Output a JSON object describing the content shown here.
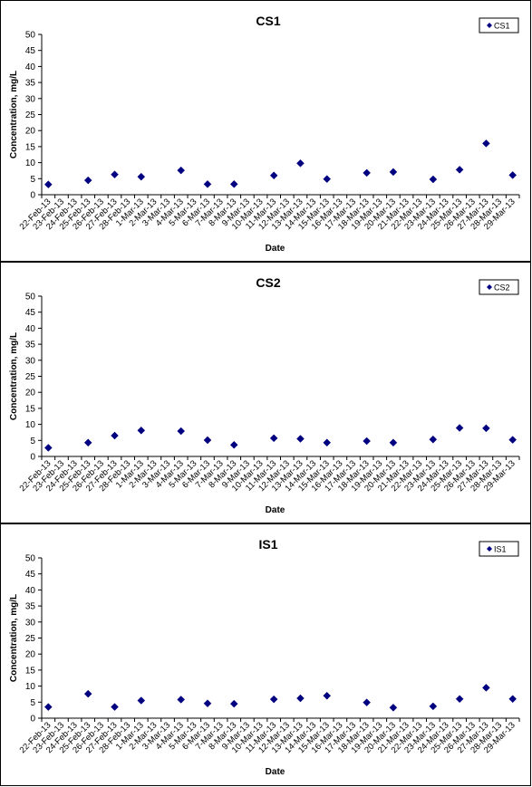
{
  "chart_data": [
    {
      "type": "scatter",
      "title": "CS1",
      "xlabel": "Date",
      "ylabel": "Concentration, mg/L",
      "ylim": [
        0,
        50
      ],
      "yticks": [
        0,
        5,
        10,
        15,
        20,
        25,
        30,
        35,
        40,
        45,
        50
      ],
      "grid": false,
      "legend_position": "top-right",
      "marker_color": "#000080",
      "categories": [
        "22-Feb-13",
        "23-Feb-13",
        "24-Feb-13",
        "25-Feb-13",
        "26-Feb-13",
        "27-Feb-13",
        "28-Feb-13",
        "1-Mar-13",
        "2-Mar-13",
        "3-Mar-13",
        "4-Mar-13",
        "5-Mar-13",
        "6-Mar-13",
        "7-Mar-13",
        "8-Mar-13",
        "9-Mar-13",
        "10-Mar-13",
        "11-Mar-13",
        "12-Mar-13",
        "13-Mar-13",
        "14-Mar-13",
        "15-Mar-13",
        "16-Mar-13",
        "17-Mar-13",
        "18-Mar-13",
        "19-Mar-13",
        "20-Mar-13",
        "21-Mar-13",
        "22-Mar-13",
        "23-Mar-13",
        "24-Mar-13",
        "25-Mar-13",
        "26-Mar-13",
        "27-Mar-13",
        "28-Mar-13",
        "29-Mar-13"
      ],
      "series": [
        {
          "name": "CS1",
          "points": [
            {
              "x": "22-Feb-13",
              "y": 3.2
            },
            {
              "x": "25-Feb-13",
              "y": 4.5
            },
            {
              "x": "27-Feb-13",
              "y": 6.3
            },
            {
              "x": "1-Mar-13",
              "y": 5.6
            },
            {
              "x": "4-Mar-13",
              "y": 7.6
            },
            {
              "x": "6-Mar-13",
              "y": 3.3
            },
            {
              "x": "8-Mar-13",
              "y": 3.3
            },
            {
              "x": "11-Mar-13",
              "y": 6.0
            },
            {
              "x": "13-Mar-13",
              "y": 9.8
            },
            {
              "x": "15-Mar-13",
              "y": 4.9
            },
            {
              "x": "18-Mar-13",
              "y": 6.8
            },
            {
              "x": "20-Mar-13",
              "y": 7.1
            },
            {
              "x": "23-Mar-13",
              "y": 4.8
            },
            {
              "x": "25-Mar-13",
              "y": 7.8
            },
            {
              "x": "27-Mar-13",
              "y": 16.0
            },
            {
              "x": "29-Mar-13",
              "y": 6.1
            }
          ]
        }
      ]
    },
    {
      "type": "scatter",
      "title": "CS2",
      "xlabel": "Date",
      "ylabel": "Concentration, mg/L",
      "ylim": [
        0,
        50
      ],
      "yticks": [
        0,
        5,
        10,
        15,
        20,
        25,
        30,
        35,
        40,
        45,
        50
      ],
      "grid": false,
      "legend_position": "top-right",
      "marker_color": "#000080",
      "categories": [
        "22-Feb-13",
        "23-Feb-13",
        "24-Feb-13",
        "25-Feb-13",
        "26-Feb-13",
        "27-Feb-13",
        "28-Feb-13",
        "1-Mar-13",
        "2-Mar-13",
        "3-Mar-13",
        "4-Mar-13",
        "5-Mar-13",
        "6-Mar-13",
        "7-Mar-13",
        "8-Mar-13",
        "9-Mar-13",
        "10-Mar-13",
        "11-Mar-13",
        "12-Mar-13",
        "13-Mar-13",
        "14-Mar-13",
        "15-Mar-13",
        "16-Mar-13",
        "17-Mar-13",
        "18-Mar-13",
        "19-Mar-13",
        "20-Mar-13",
        "21-Mar-13",
        "22-Mar-13",
        "23-Mar-13",
        "24-Mar-13",
        "25-Mar-13",
        "26-Mar-13",
        "27-Mar-13",
        "28-Mar-13",
        "29-Mar-13"
      ],
      "series": [
        {
          "name": "CS2",
          "points": [
            {
              "x": "22-Feb-13",
              "y": 2.7
            },
            {
              "x": "25-Feb-13",
              "y": 4.3
            },
            {
              "x": "27-Feb-13",
              "y": 6.5
            },
            {
              "x": "1-Mar-13",
              "y": 8.1
            },
            {
              "x": "4-Mar-13",
              "y": 7.9
            },
            {
              "x": "6-Mar-13",
              "y": 5.1
            },
            {
              "x": "8-Mar-13",
              "y": 3.6
            },
            {
              "x": "11-Mar-13",
              "y": 5.7
            },
            {
              "x": "13-Mar-13",
              "y": 5.5
            },
            {
              "x": "15-Mar-13",
              "y": 4.3
            },
            {
              "x": "18-Mar-13",
              "y": 4.8
            },
            {
              "x": "20-Mar-13",
              "y": 4.3
            },
            {
              "x": "23-Mar-13",
              "y": 5.3
            },
            {
              "x": "25-Mar-13",
              "y": 8.9
            },
            {
              "x": "27-Mar-13",
              "y": 8.8
            },
            {
              "x": "29-Mar-13",
              "y": 5.2
            }
          ]
        }
      ]
    },
    {
      "type": "scatter",
      "title": "IS1",
      "xlabel": "Date",
      "ylabel": "Concentration, mg/L",
      "ylim": [
        0,
        50
      ],
      "yticks": [
        0,
        5,
        10,
        15,
        20,
        25,
        30,
        35,
        40,
        45,
        50
      ],
      "grid": false,
      "legend_position": "top-right",
      "marker_color": "#000080",
      "categories": [
        "22-Feb-13",
        "23-Feb-13",
        "24-Feb-13",
        "25-Feb-13",
        "26-Feb-13",
        "27-Feb-13",
        "28-Feb-13",
        "1-Mar-13",
        "2-Mar-13",
        "3-Mar-13",
        "4-Mar-13",
        "5-Mar-13",
        "6-Mar-13",
        "7-Mar-13",
        "8-Mar-13",
        "9-Mar-13",
        "10-Mar-13",
        "11-Mar-13",
        "12-Mar-13",
        "13-Mar-13",
        "14-Mar-13",
        "15-Mar-13",
        "16-Mar-13",
        "17-Mar-13",
        "18-Mar-13",
        "19-Mar-13",
        "20-Mar-13",
        "21-Mar-13",
        "22-Mar-13",
        "23-Mar-13",
        "24-Mar-13",
        "25-Mar-13",
        "26-Mar-13",
        "27-Mar-13",
        "28-Mar-13",
        "29-Mar-13"
      ],
      "series": [
        {
          "name": "IS1",
          "points": [
            {
              "x": "22-Feb-13",
              "y": 3.5
            },
            {
              "x": "25-Feb-13",
              "y": 7.6
            },
            {
              "x": "27-Feb-13",
              "y": 3.5
            },
            {
              "x": "1-Mar-13",
              "y": 5.5
            },
            {
              "x": "4-Mar-13",
              "y": 5.8
            },
            {
              "x": "6-Mar-13",
              "y": 4.6
            },
            {
              "x": "8-Mar-13",
              "y": 4.5
            },
            {
              "x": "11-Mar-13",
              "y": 5.9
            },
            {
              "x": "13-Mar-13",
              "y": 6.2
            },
            {
              "x": "15-Mar-13",
              "y": 7.0
            },
            {
              "x": "18-Mar-13",
              "y": 4.9
            },
            {
              "x": "20-Mar-13",
              "y": 3.3
            },
            {
              "x": "23-Mar-13",
              "y": 3.7
            },
            {
              "x": "25-Mar-13",
              "y": 6.0
            },
            {
              "x": "27-Mar-13",
              "y": 9.5
            },
            {
              "x": "29-Mar-13",
              "y": 6.0
            }
          ]
        }
      ]
    }
  ]
}
